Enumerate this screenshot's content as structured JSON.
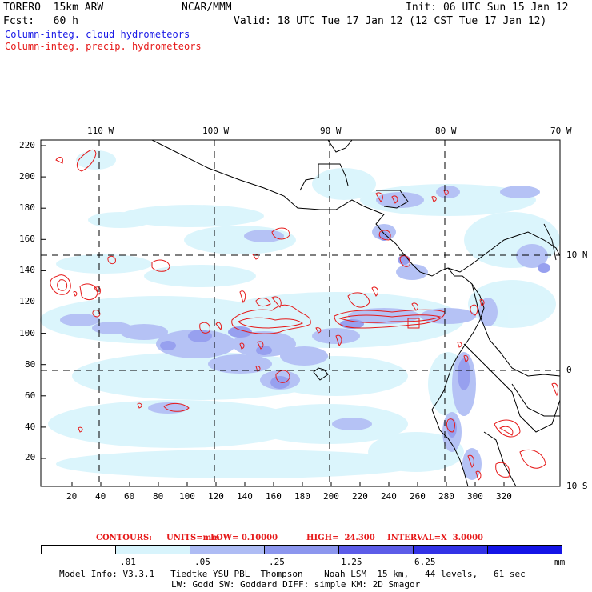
{
  "header": {
    "model": "TORERO  15km ARW",
    "org": "NCAR/MMM",
    "init": "Init: 06 UTC Sun 15 Jan 12",
    "fcst": "Fcst:   60 h",
    "valid": "Valid: 18 UTC Tue 17 Jan 12 (12 CST Tue 17 Jan 12)",
    "field1": "Column-integ. cloud hydrometeors",
    "field2": "Column-integ. precip. hydrometeors"
  },
  "map": {
    "lon_labels": [
      "110 W",
      "100 W",
      "90 W",
      "80 W",
      "70 W"
    ],
    "lat_labels": [
      "10 N",
      "0",
      "10 S"
    ],
    "y_ticks": [
      "220",
      "200",
      "180",
      "160",
      "140",
      "120",
      "100",
      "80",
      "60",
      "40",
      "20"
    ],
    "x_ticks": [
      "20",
      "40",
      "60",
      "80",
      "100",
      "120",
      "140",
      "160",
      "180",
      "200",
      "220",
      "240",
      "260",
      "280",
      "300",
      "320"
    ]
  },
  "contours": {
    "label": "CONTOURS:",
    "units": "UNITS=mm",
    "low": "LOW= 0.10000",
    "high": "HIGH=  24.300",
    "interval": "INTERVAL=X  3.0000"
  },
  "legend": {
    "values": [
      ".01",
      ".05",
      ".25",
      "1.25",
      "6.25"
    ],
    "unit": "mm",
    "colors": [
      "#ffffff",
      "#d8f4fc",
      "#aebcf4",
      "#8c96ee",
      "#5c5ce8",
      "#3232e6",
      "#1414e6"
    ]
  },
  "footer": {
    "line1": "Model Info: V3.3.1   Tiedtke YSU PBL  Thompson    Noah LSM  15 km,   44 levels,   61 sec",
    "line2": "LW: Godd SW: Goddard DIFF: simple KM: 2D Smagor"
  }
}
